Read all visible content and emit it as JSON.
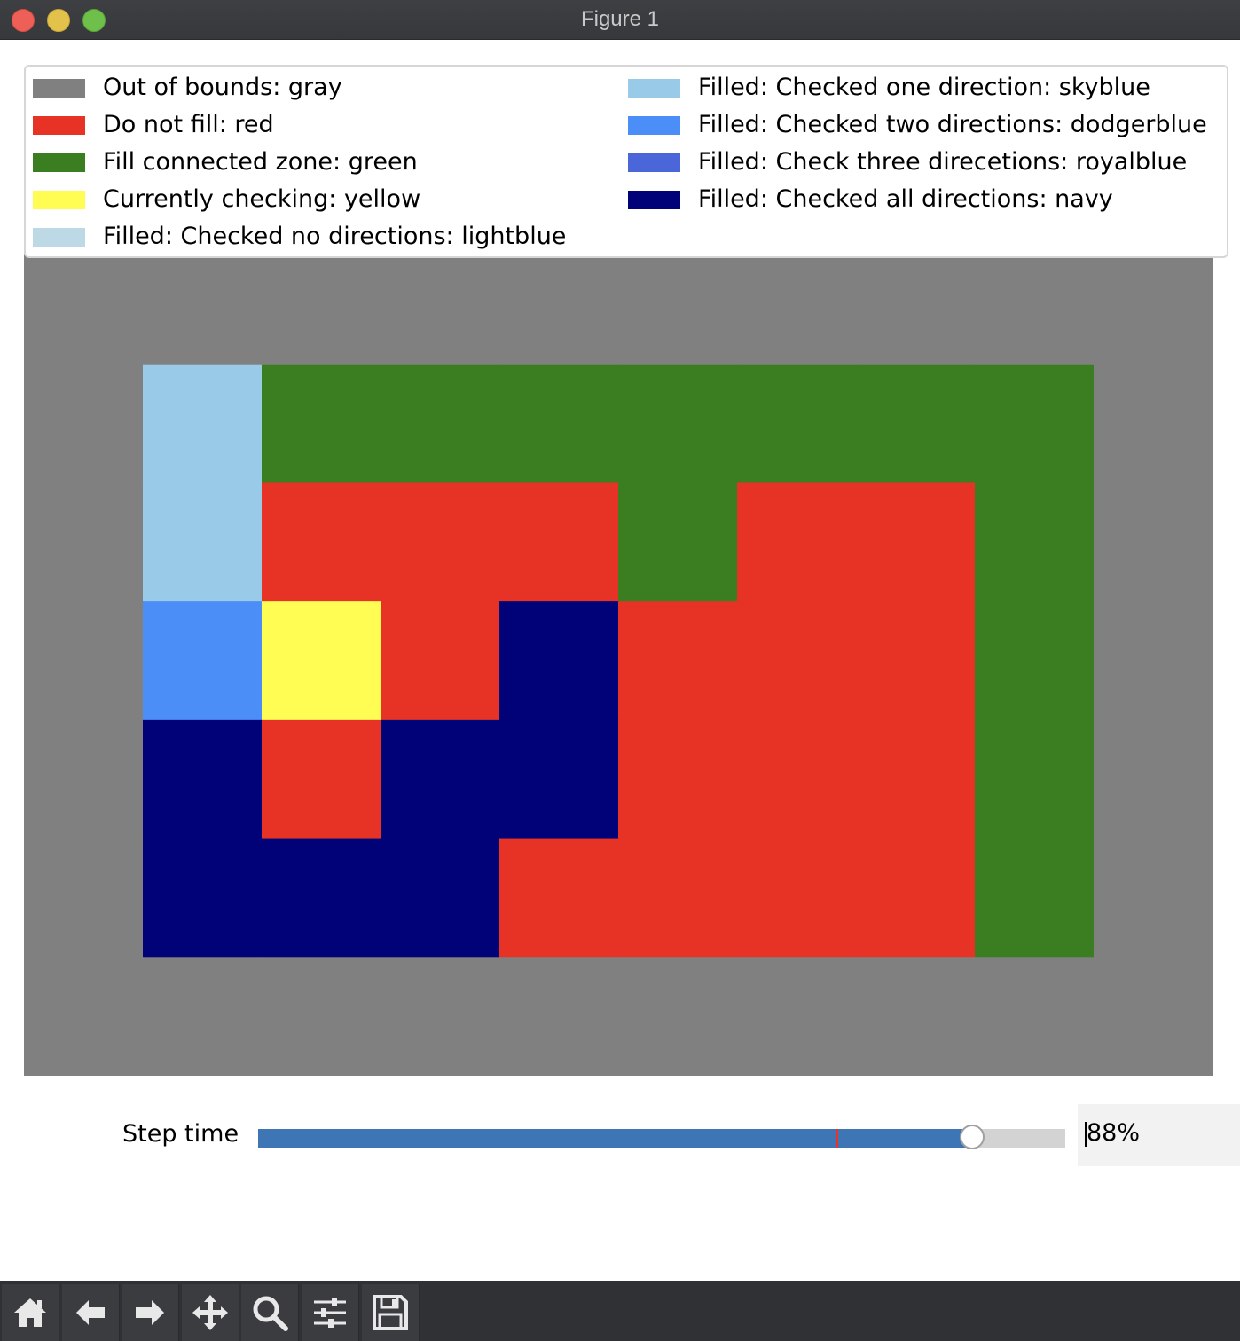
{
  "window": {
    "title": "Figure 1"
  },
  "legend": {
    "items": [
      {
        "label": "Out of bounds: gray",
        "color": "#808080"
      },
      {
        "label": "Do not fill: red",
        "color": "#e63326"
      },
      {
        "label": "Fill connected zone: green",
        "color": "#3b7e22"
      },
      {
        "label": "Currently checking: yellow",
        "color": "#fffd53"
      },
      {
        "label": "Filled: Checked no directions: lightblue",
        "color": "#bdd9e5"
      },
      {
        "label": "Filled: Checked one direction: skyblue",
        "color": "#99cbe9"
      },
      {
        "label": "Filled: Checked two directions: dodgerblue",
        "color": "#4c8ef7"
      },
      {
        "label": "Filled: Check three direcetions: royalblue",
        "color": "#4a66d8"
      },
      {
        "label": "Filled: Checked all directions: navy",
        "color": "#010277"
      }
    ]
  },
  "chart_data": {
    "type": "heatmap",
    "rows": 7,
    "cols": 10,
    "colors": {
      "gray": "#808080",
      "red": "#e63326",
      "green": "#3b7e22",
      "yellow": "#fffd53",
      "lightblue": "#bdd9e5",
      "skyblue": "#99cbe9",
      "dodgerblue": "#4c8ef7",
      "royalblue": "#4a66d8",
      "navy": "#010277"
    },
    "grid": [
      [
        "gray",
        "gray",
        "gray",
        "gray",
        "gray",
        "gray",
        "gray",
        "gray",
        "gray",
        "gray"
      ],
      [
        "gray",
        "skyblue",
        "green",
        "green",
        "green",
        "green",
        "green",
        "green",
        "green",
        "gray"
      ],
      [
        "gray",
        "skyblue",
        "red",
        "red",
        "red",
        "green",
        "red",
        "red",
        "green",
        "gray"
      ],
      [
        "gray",
        "dodgerblue",
        "yellow",
        "red",
        "navy",
        "red",
        "red",
        "red",
        "green",
        "gray"
      ],
      [
        "gray",
        "navy",
        "red",
        "navy",
        "navy",
        "red",
        "red",
        "red",
        "green",
        "gray"
      ],
      [
        "gray",
        "navy",
        "navy",
        "navy",
        "red",
        "red",
        "red",
        "red",
        "green",
        "gray"
      ],
      [
        "gray",
        "gray",
        "gray",
        "gray",
        "gray",
        "gray",
        "gray",
        "gray",
        "gray",
        "gray"
      ]
    ]
  },
  "slider": {
    "label": "Step time",
    "value_text": "88%",
    "value": 0.885,
    "initial": 0.717
  },
  "toolbar": {
    "tools": [
      "home-icon",
      "back-arrow-icon",
      "forward-arrow-icon",
      "pan-icon",
      "zoom-icon",
      "configure-subplots-icon",
      "save-icon"
    ]
  }
}
